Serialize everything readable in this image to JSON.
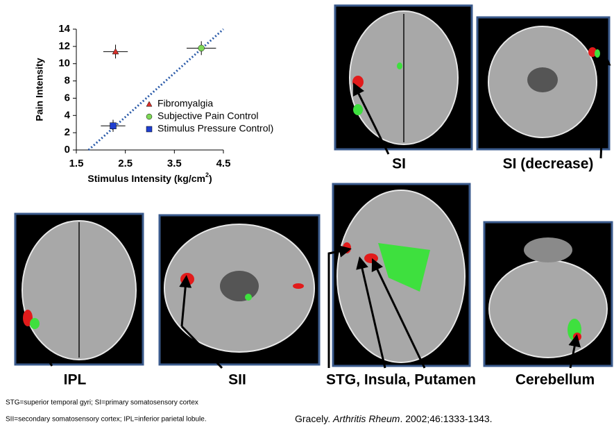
{
  "chart_data": {
    "type": "scatter",
    "ylabel": "Pain Intensity",
    "xlabel": [
      "Stimulus Intensity (kg/cm",
      "2",
      ")"
    ],
    "xlim": [
      1.5,
      4.5
    ],
    "xticks": [
      1.5,
      2.5,
      3.5,
      4.5
    ],
    "ylim": [
      0,
      14
    ],
    "yticks": [
      0,
      2,
      4,
      6,
      8,
      10,
      12,
      14
    ],
    "legend": "right",
    "series": [
      {
        "name": "Fibromyalgia",
        "color": "#d9302a",
        "marker": "triangle",
        "x": [
          2.3
        ],
        "values": [
          11.4
        ],
        "xerr": [
          0.25
        ],
        "yerr": [
          0.8
        ]
      },
      {
        "name": "Subjective Pain Control",
        "color": "#7ed957",
        "marker": "circle",
        "x": [
          4.05
        ],
        "values": [
          11.8
        ],
        "xerr": [
          0.3
        ],
        "yerr": [
          0.8
        ]
      },
      {
        "name": "Stimulus Pressure Control)",
        "color": "#1f3fd0",
        "marker": "square",
        "x": [
          2.25
        ],
        "values": [
          2.8
        ],
        "xerr": [
          0.25
        ],
        "yerr": [
          0.7
        ]
      }
    ],
    "trendline": {
      "color": "#2a5aa8",
      "x": [
        1.75,
        4.5
      ],
      "values": [
        0,
        14
      ]
    }
  },
  "panels": [
    "SI",
    "SI (decrease)",
    "IPL",
    "SII",
    "STG, Insula, Putamen",
    "Cerebellum"
  ],
  "footnotes": [
    "STG=superior temporal gyri; SI=primary somatosensory cortex",
    "SII=secondary somatosensory cortex; IPL=inferior parietal lobule."
  ],
  "citation": {
    "author": "Gracely. ",
    "journal": "Arthritis Rheum",
    "details": ". 2002;46:1333-1343."
  }
}
